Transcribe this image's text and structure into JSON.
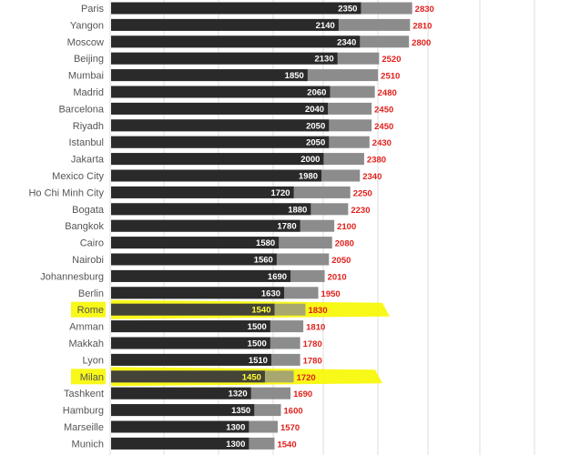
{
  "chart_data": {
    "type": "bar",
    "categories": [
      "Paris",
      "Yangon",
      "Moscow",
      "Beijing",
      "Mumbai",
      "Madrid",
      "Barcelona",
      "Riyadh",
      "Istanbul",
      "Jakarta",
      "Mexico City",
      "Ho Chi Minh City",
      "Bogata",
      "Bangkok",
      "Cairo",
      "Nairobi",
      "Johannesburg",
      "Berlin",
      "Rome",
      "Amman",
      "Makkah",
      "Lyon",
      "Milan",
      "Tashkent",
      "Hamburg",
      "Marseille",
      "Munich"
    ],
    "series": [
      {
        "values": [
          2350,
          2140,
          2340,
          2130,
          1850,
          2060,
          2040,
          2050,
          2050,
          2000,
          1980,
          1720,
          1880,
          1780,
          1580,
          1560,
          1690,
          1630,
          1540,
          1500,
          1500,
          1510,
          1450,
          1320,
          1350,
          1300,
          1300
        ]
      },
      {
        "values": [
          2830,
          2810,
          2800,
          2520,
          2510,
          2480,
          2450,
          2450,
          2430,
          2380,
          2340,
          2250,
          2230,
          2100,
          2080,
          2050,
          2010,
          1950,
          1830,
          1810,
          1780,
          1780,
          1720,
          1690,
          1600,
          1570,
          1540
        ]
      }
    ],
    "highlighted": [
      "Rome",
      "Milan"
    ],
    "colors": {
      "primary": "#2a2a2a",
      "secondary": "#8c8c8c",
      "secondary_label": "#e0201c",
      "highlight": "#f7f700",
      "highlight_label": "#ffff33",
      "grid": "#dddddd"
    },
    "grid": true,
    "legend": "none"
  }
}
